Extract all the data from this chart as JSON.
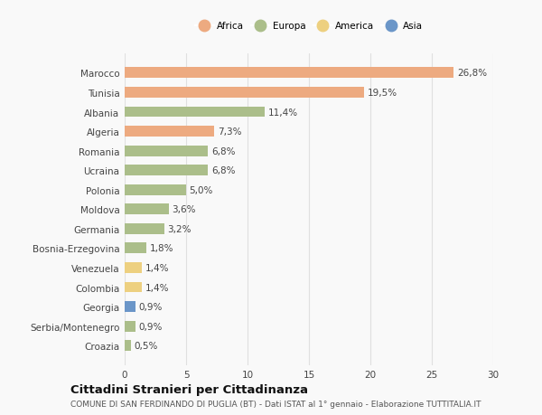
{
  "categories": [
    "Marocco",
    "Tunisia",
    "Albania",
    "Algeria",
    "Romania",
    "Ucraina",
    "Polonia",
    "Moldova",
    "Germania",
    "Bosnia-Erzegovina",
    "Venezuela",
    "Colombia",
    "Georgia",
    "Serbia/Montenegro",
    "Croazia"
  ],
  "values": [
    26.8,
    19.5,
    11.4,
    7.3,
    6.8,
    6.8,
    5.0,
    3.6,
    3.2,
    1.8,
    1.4,
    1.4,
    0.9,
    0.9,
    0.5
  ],
  "labels": [
    "26,8%",
    "19,5%",
    "11,4%",
    "7,3%",
    "6,8%",
    "6,8%",
    "5,0%",
    "3,6%",
    "3,2%",
    "1,8%",
    "1,4%",
    "1,4%",
    "0,9%",
    "0,9%",
    "0,5%"
  ],
  "continents": [
    "Africa",
    "Africa",
    "Europa",
    "Africa",
    "Europa",
    "Europa",
    "Europa",
    "Europa",
    "Europa",
    "Europa",
    "America",
    "America",
    "Asia",
    "Europa",
    "Europa"
  ],
  "colors": {
    "Africa": "#EDAA80",
    "Europa": "#ABBE8A",
    "America": "#EDD080",
    "Asia": "#6B96C8"
  },
  "xlim": [
    0,
    30
  ],
  "xticks": [
    0,
    5,
    10,
    15,
    20,
    25,
    30
  ],
  "title": "Cittadini Stranieri per Cittadinanza",
  "subtitle": "COMUNE DI SAN FERDINANDO DI PUGLIA (BT) - Dati ISTAT al 1° gennaio - Elaborazione TUTTITALIA.IT",
  "background_color": "#f9f9f9",
  "grid_color": "#e0e0e0",
  "bar_height": 0.55,
  "label_fontsize": 7.5,
  "tick_fontsize": 7.5,
  "title_fontsize": 9.5,
  "subtitle_fontsize": 6.5,
  "legend_order": [
    "Africa",
    "Europa",
    "America",
    "Asia"
  ]
}
